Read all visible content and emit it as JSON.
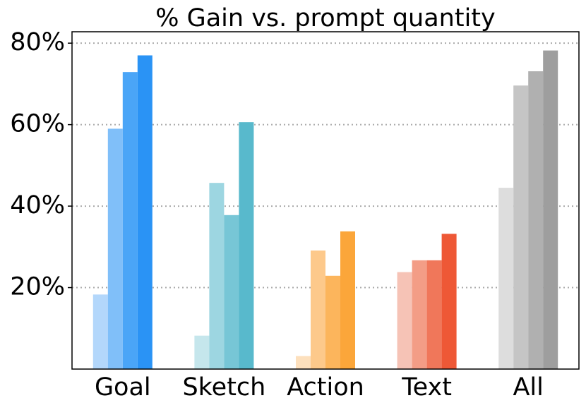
{
  "chart_data": {
    "type": "bar",
    "title": "% Gain vs. prompt quantity",
    "categories": [
      "Goal",
      "Sketch",
      "Action",
      "Text",
      "All"
    ],
    "series": [
      {
        "colors": [
          "#b3d7fb",
          "#c5e6ec",
          "#fde0bd",
          "#f6c3b6",
          "#dddddd"
        ],
        "values": [
          18.3,
          8.2,
          3.2,
          23.8,
          44.5
        ]
      },
      {
        "colors": [
          "#80bff9",
          "#9dd6e1",
          "#fdc98b",
          "#f39d86",
          "#c5c5c5"
        ],
        "values": [
          59.0,
          45.7,
          29.1,
          26.7,
          69.6
        ]
      },
      {
        "colors": [
          "#4aa5f7",
          "#77c6d6",
          "#fcb55c",
          "#f0775a",
          "#b0b0b0"
        ],
        "values": [
          72.9,
          37.8,
          22.9,
          26.7,
          73.1
        ]
      },
      {
        "colors": [
          "#2a93f5",
          "#58b9cc",
          "#fba63a",
          "#ee5836",
          "#9e9e9e"
        ],
        "values": [
          77.0,
          60.6,
          33.8,
          33.2,
          78.2
        ]
      }
    ],
    "ylim": [
      0,
      82.8
    ],
    "yticks": [
      {
        "value": 20,
        "label": "20%"
      },
      {
        "value": 40,
        "label": "40%"
      },
      {
        "value": 60,
        "label": "60%"
      },
      {
        "value": 80,
        "label": "80%"
      }
    ],
    "grid": true
  }
}
